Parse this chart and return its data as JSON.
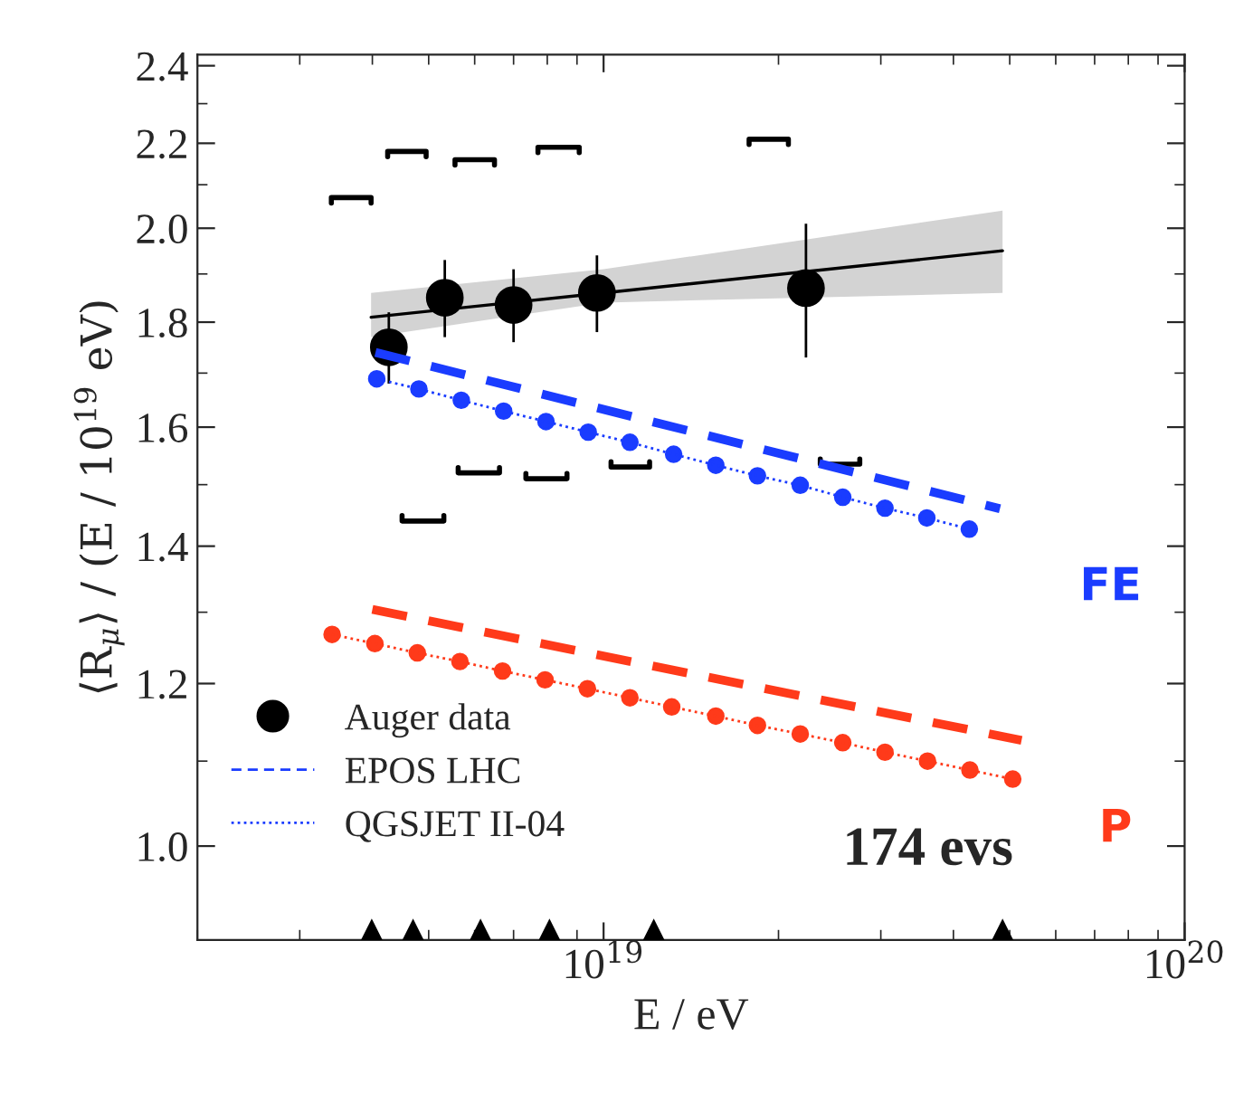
{
  "chart_data": {
    "type": "scatter",
    "xlabel": "E / eV",
    "ylabel": "⟨R$_{μ}$⟩ / (E / 10$^{19}$ eV)",
    "log": "xy",
    "xlim": [
      2e+18,
      1e+20
    ],
    "ylim": [
      0.9,
      2.43
    ],
    "xticks": [
      {
        "value": 1e+19,
        "label": "10$^{19}$"
      },
      {
        "value": 1e+20,
        "label": "10$^{20}$"
      }
    ],
    "yticks": [
      {
        "value": 1.0,
        "label": "1.0"
      },
      1.2,
      1.4,
      1.6,
      1.8,
      {
        "value": 2.0,
        "label": "2.0"
      },
      2.2,
      2.4
    ],
    "grid": false,
    "legend": "bottom left",
    "annotations": [
      "FE",
      "P",
      "174 evs"
    ],
    "series": [
      {
        "name": "Auger data",
        "color": "#000000",
        "marker": "circle",
        "x": [
          4.27e+18,
          5.33e+18,
          7e+18,
          9.74e+18,
          2.23e+19
        ],
        "values": [
          1.75,
          1.85,
          1.835,
          1.86,
          1.87
        ],
        "errors": [
          [
            1.68,
            1.82
          ],
          [
            1.77,
            1.93
          ],
          [
            1.76,
            1.91
          ],
          [
            1.78,
            1.94
          ],
          [
            1.73,
            2.01
          ]
        ]
      },
      {
        "type": "line",
        "color": "#000000",
        "line_style": "solid",
        "x": [
          3.98e+18,
          1e+19,
          4.86e+19
        ],
        "values": [
          1.81,
          1.86,
          1.95
        ],
        "lower": [
          1.77,
          1.84,
          1.86
        ],
        "upper": [
          1.86,
          1.91,
          2.04
        ]
      },
      {
        "type": "line",
        "color": "#000000",
        "line_style": "solid",
        "x": [
          3.4e+18,
          3.4e+18,
          3.98e+18,
          3.98e+18
        ],
        "values": [
          2.057,
          2.07,
          2.07,
          2.057
        ]
      },
      {
        "type": "line",
        "color": "#000000",
        "line_style": "solid",
        "x": [
          4.25e+18,
          4.25e+18,
          4.95e+18,
          4.95e+18
        ],
        "values": [
          2.167,
          2.18,
          2.18,
          2.167
        ]
      },
      {
        "type": "line",
        "color": "#000000",
        "line_style": "solid",
        "x": [
          5.55e+18,
          5.55e+18,
          6.49e+18,
          6.49e+18
        ],
        "values": [
          2.147,
          2.16,
          2.16,
          2.147
        ]
      },
      {
        "type": "line",
        "color": "#000000",
        "line_style": "solid",
        "x": [
          7.71e+18,
          7.71e+18,
          9.08e+18,
          9.08e+18
        ],
        "values": [
          2.177,
          2.19,
          2.19,
          2.177
        ]
      },
      {
        "type": "line",
        "color": "#000000",
        "line_style": "solid",
        "x": [
          1.78e+19,
          1.78e+19,
          2.08e+19,
          2.08e+19
        ],
        "values": [
          2.197,
          2.21,
          2.21,
          2.197
        ]
      },
      {
        "type": "line",
        "color": "#000000",
        "line_style": "solid",
        "x": [
          4.5e+18,
          4.5e+18,
          5.31e+18,
          5.31e+18
        ],
        "values": [
          1.449,
          1.44,
          1.44,
          1.449
        ]
      },
      {
        "type": "line",
        "color": "#000000",
        "line_style": "solid",
        "x": [
          5.62e+18,
          5.62e+18,
          6.62e+18,
          6.62e+18
        ],
        "values": [
          1.529,
          1.52,
          1.52,
          1.529
        ]
      },
      {
        "type": "line",
        "color": "#000000",
        "line_style": "solid",
        "x": [
          7.35e+18,
          7.35e+18,
          8.65e+18,
          8.65e+18
        ],
        "values": [
          1.519,
          1.51,
          1.51,
          1.519
        ]
      },
      {
        "type": "line",
        "color": "#000000",
        "line_style": "solid",
        "x": [
          1.03e+19,
          1.03e+19,
          1.2e+19,
          1.2e+19
        ],
        "values": [
          1.539,
          1.53,
          1.53,
          1.539
        ]
      },
      {
        "type": "line",
        "color": "#000000",
        "line_style": "solid",
        "x": [
          2.36e+19,
          2.36e+19,
          2.76e+19,
          2.76e+19
        ],
        "values": [
          1.544,
          1.535,
          1.535,
          1.544
        ]
      },
      {
        "name": "EPOS LHC",
        "type": "line",
        "color": "#1a3cff",
        "line_style": "dashed",
        "marker": "none",
        "x": [
          4.05e+18,
          4.81e+19
        ],
        "values": [
          1.74,
          1.46
        ]
      },
      {
        "name": "QGSJET II-04",
        "type": "line",
        "color": "#1a3cff",
        "line_style": "dotted",
        "marker": "circle",
        "x": [
          4.07e+18,
          4.81e+18,
          5.69e+18,
          6.73e+18,
          7.96e+18,
          9.41e+18,
          1.11e+19,
          1.32e+19,
          1.56e+19,
          1.84e+19,
          2.18e+19,
          2.58e+19,
          3.05e+19,
          3.6e+19,
          4.26e+19
        ],
        "values": [
          1.689,
          1.67,
          1.649,
          1.629,
          1.61,
          1.591,
          1.573,
          1.552,
          1.533,
          1.515,
          1.499,
          1.479,
          1.461,
          1.445,
          1.427
        ]
      },
      {
        "type": "line",
        "color": "#ff3a1a",
        "line_style": "dashed",
        "marker": "none",
        "x": [
          4e+18,
          5.24e+19
        ],
        "values": [
          1.304,
          1.126
        ]
      },
      {
        "type": "line",
        "color": "#ff3a1a",
        "line_style": "dotted",
        "marker": "circle",
        "x": [
          3.41e+18,
          4.04e+18,
          4.78e+18,
          5.66e+18,
          6.7e+18,
          7.93e+18,
          9.38e+18,
          1.11e+19,
          1.31e+19,
          1.56e+19,
          1.84e+19,
          2.18e+19,
          2.58e+19,
          3.05e+19,
          3.61e+19,
          4.27e+19,
          5.06e+19
        ],
        "values": [
          1.268,
          1.255,
          1.242,
          1.23,
          1.217,
          1.205,
          1.193,
          1.181,
          1.169,
          1.157,
          1.145,
          1.134,
          1.123,
          1.111,
          1.1,
          1.089,
          1.078
        ]
      },
      {
        "color": "#000000",
        "marker": "triangle",
        "x": [
          3.99e+18,
          4.7e+18,
          6.14e+18,
          8.07e+18,
          1.22e+19,
          4.86e+19
        ],
        "values": [
          0.91,
          0.91,
          0.91,
          0.91,
          0.91,
          0.91
        ]
      }
    ]
  }
}
